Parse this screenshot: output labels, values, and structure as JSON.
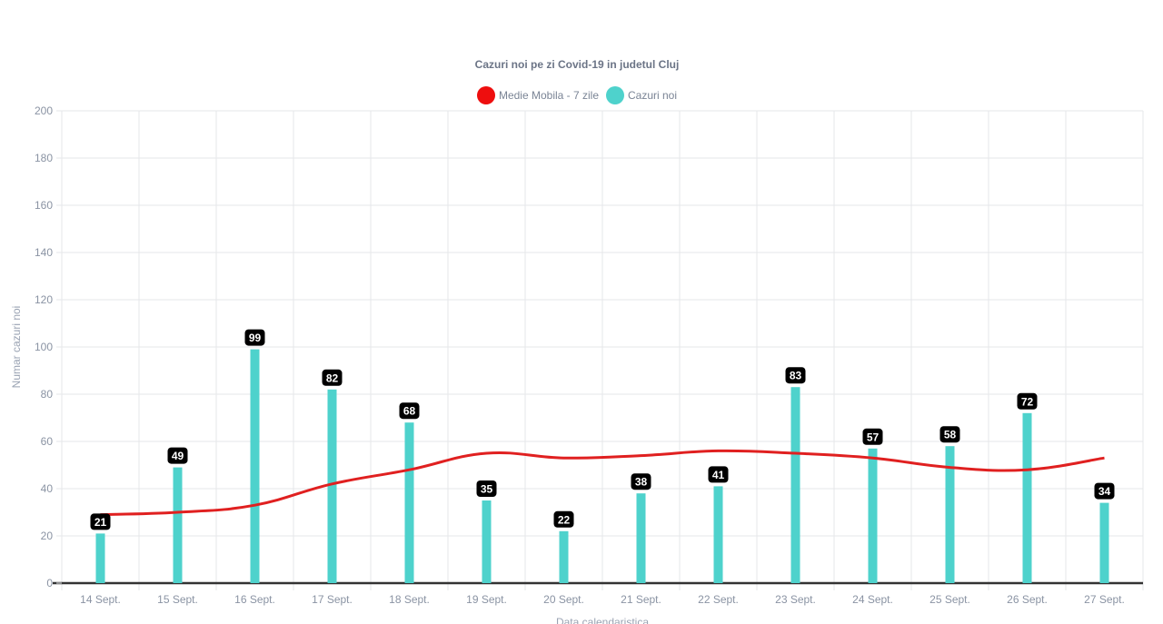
{
  "chart_data": {
    "type": "bar",
    "title": "Cazuri noi pe zi Covid-19 in judetul Cluj",
    "xlabel": "Data calendaristica",
    "ylabel": "Numar cazuri noi",
    "ylim": [
      0,
      200
    ],
    "yticks": [
      0,
      20,
      40,
      60,
      80,
      100,
      120,
      140,
      160,
      180,
      200
    ],
    "grid": true,
    "legend_position": "top",
    "categories": [
      "14 Sept.",
      "15 Sept.",
      "16 Sept.",
      "17 Sept.",
      "18 Sept.",
      "19 Sept.",
      "20 Sept.",
      "21 Sept.",
      "22 Sept.",
      "23 Sept.",
      "24 Sept.",
      "25 Sept.",
      "26 Sept.",
      "27 Sept."
    ],
    "series": [
      {
        "name": "Medie Mobila - 7 zile",
        "type": "line",
        "color": "#e02020",
        "values": [
          29,
          30,
          33,
          42,
          48,
          55,
          53,
          54,
          56,
          55,
          53,
          49,
          48,
          53
        ]
      },
      {
        "name": "Cazuri noi",
        "type": "bar",
        "color": "#4ed2cc",
        "values": [
          21,
          49,
          99,
          82,
          68,
          35,
          22,
          38,
          41,
          83,
          57,
          58,
          72,
          34
        ]
      }
    ]
  }
}
